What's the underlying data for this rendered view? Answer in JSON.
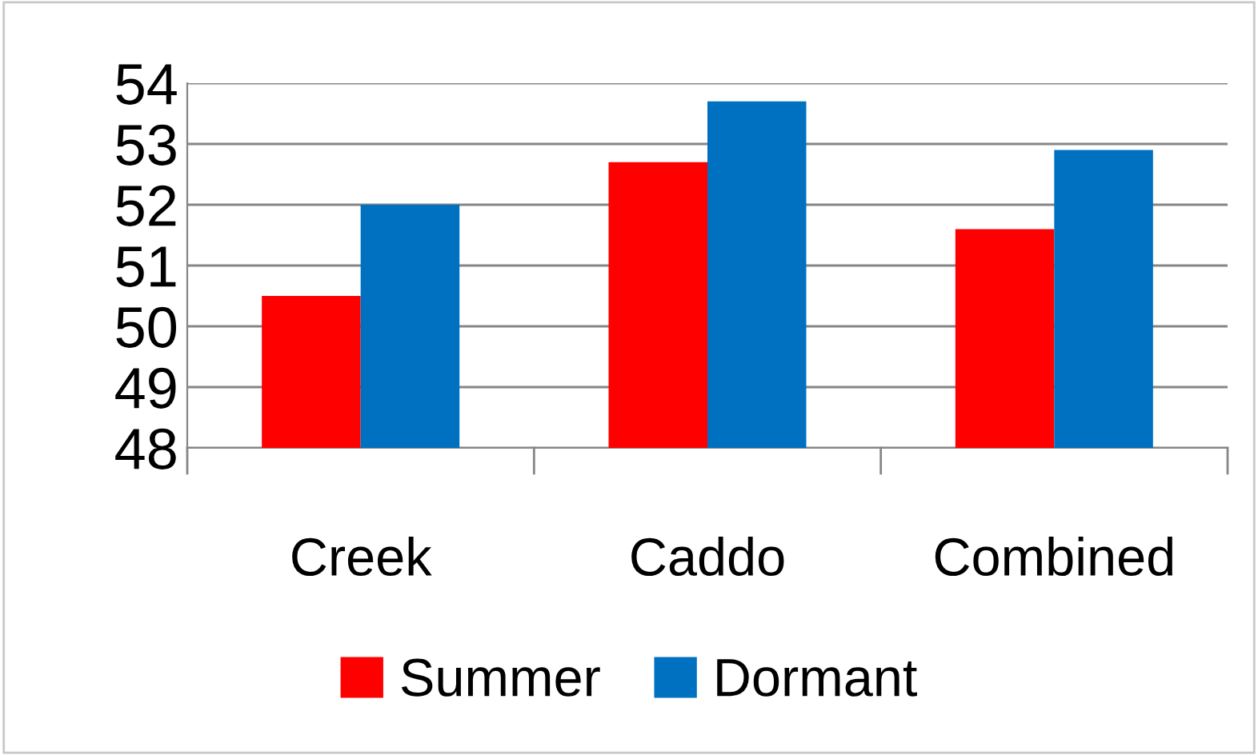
{
  "chart_data": {
    "type": "bar",
    "categories": [
      "Creek",
      "Caddo",
      "Combined"
    ],
    "series": [
      {
        "name": "Summer",
        "color": "#ff0000",
        "values": [
          50.5,
          52.7,
          51.6
        ]
      },
      {
        "name": "Dormant",
        "color": "#0070c0",
        "values": [
          52.0,
          53.7,
          52.9
        ]
      }
    ],
    "ylim": [
      48,
      54
    ],
    "yticks": [
      48,
      49,
      50,
      51,
      52,
      53,
      54
    ],
    "grid": "y",
    "legend": "bottom"
  }
}
